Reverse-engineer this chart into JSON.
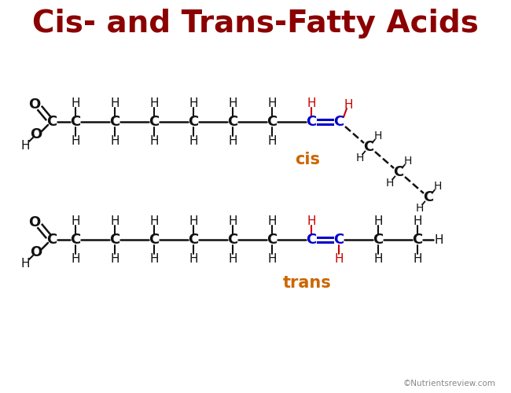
{
  "title": "Cis- and Trans-Fatty Acids",
  "title_color": "#8B0000",
  "bg_color": "#FFFFFF",
  "black": "#111111",
  "red": "#CC0000",
  "blue": "#0000CC",
  "orange": "#CC6600",
  "watermark": "©Nutrientsreview.com",
  "cis_label": "cis",
  "trans_label": "trans",
  "figw": 6.5,
  "figh": 5.0,
  "dpi": 100
}
